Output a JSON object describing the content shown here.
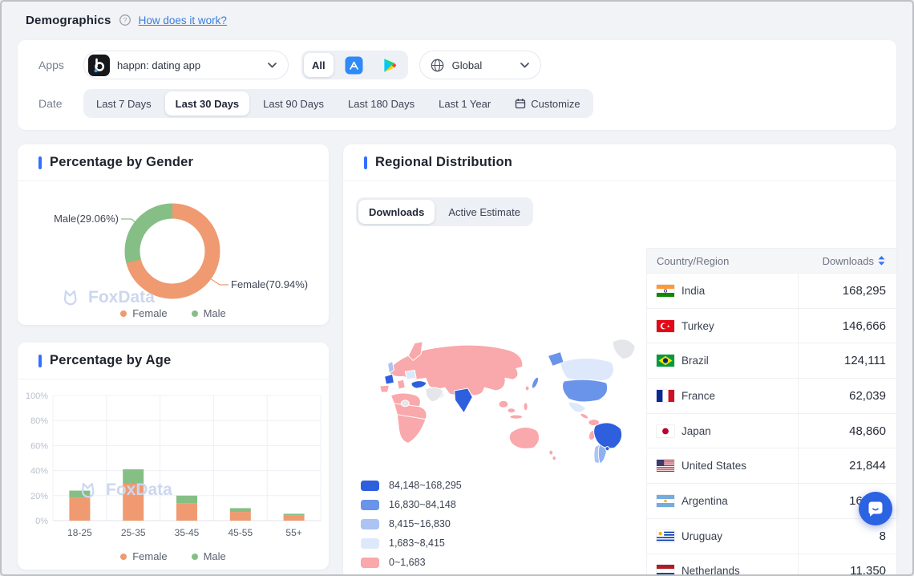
{
  "header": {
    "title": "Demographics",
    "help_link": "How does it work?"
  },
  "filters": {
    "apps_label": "Apps",
    "app_select": {
      "value": "happn: dating app"
    },
    "platforms": {
      "all_label": "All"
    },
    "region_select": {
      "value": "Global"
    },
    "date_label": "Date",
    "date_options": [
      {
        "label": "Last 7 Days",
        "selected": false
      },
      {
        "label": "Last 30 Days",
        "selected": true
      },
      {
        "label": "Last 90 Days",
        "selected": false
      },
      {
        "label": "Last 180 Days",
        "selected": false
      },
      {
        "label": "Last 1 Year",
        "selected": false
      },
      {
        "label": "Customize",
        "selected": false,
        "icon": "calendar-icon"
      }
    ]
  },
  "gender_card": {
    "title": "Percentage by Gender",
    "watermark": "FoxData",
    "chart_data": {
      "type": "pie",
      "slices": [
        {
          "name": "Female",
          "value": 70.94,
          "color": "#ef9a70",
          "label": "Female(70.94%)"
        },
        {
          "name": "Male",
          "value": 29.06,
          "color": "#85bf85",
          "label": "Male(29.06%)"
        }
      ],
      "legend": [
        {
          "name": "Female",
          "color": "#ef9a70"
        },
        {
          "name": "Male",
          "color": "#85bf85"
        }
      ]
    }
  },
  "age_card": {
    "title": "Percentage by Age",
    "watermark": "FoxData",
    "chart_data": {
      "type": "bar",
      "stacked": true,
      "categories": [
        "18-25",
        "25-35",
        "35-45",
        "45-55",
        "55+"
      ],
      "series": [
        {
          "name": "Female",
          "color": "#ef9a70",
          "values": [
            18.5,
            29.5,
            14,
            7,
            4
          ]
        },
        {
          "name": "Male",
          "color": "#85bf85",
          "values": [
            5.5,
            11.5,
            6,
            3,
            1.5
          ]
        }
      ],
      "yticks": [
        "0%",
        "20%",
        "40%",
        "60%",
        "80%",
        "100%"
      ],
      "ylim": [
        0,
        100
      ],
      "grid": true,
      "legend_position": "bottom"
    }
  },
  "regional_card": {
    "title": "Regional Distribution",
    "tabs": [
      {
        "label": "Downloads",
        "selected": true
      },
      {
        "label": "Active Estimate",
        "selected": false
      }
    ],
    "map_legend": [
      {
        "range": "84,148~168,295",
        "color": "#2e5fdd"
      },
      {
        "range": "16,830~84,148",
        "color": "#6a93ea"
      },
      {
        "range": "8,415~16,830",
        "color": "#abc4f4"
      },
      {
        "range": "1,683~8,415",
        "color": "#dde8fb"
      },
      {
        "range": "0~1,683",
        "color": "#f9a8ab"
      }
    ],
    "table": {
      "columns": [
        "Country/Region",
        "Downloads"
      ],
      "rows": [
        {
          "flag": "in",
          "country": "India",
          "value": "168,295"
        },
        {
          "flag": "tr",
          "country": "Turkey",
          "value": "146,666"
        },
        {
          "flag": "br",
          "country": "Brazil",
          "value": "124,111"
        },
        {
          "flag": "fr",
          "country": "France",
          "value": "62,039"
        },
        {
          "flag": "jp",
          "country": "Japan",
          "value": "48,860"
        },
        {
          "flag": "us",
          "country": "United States",
          "value": "21,844"
        },
        {
          "flag": "ar",
          "country": "Argentina",
          "value": "16,308"
        },
        {
          "flag": "uy",
          "country": "Uruguay",
          "value": "8"
        },
        {
          "flag": "nl",
          "country": "Netherlands",
          "value": "11.350"
        }
      ]
    }
  },
  "colors": {
    "accent": "#3370ff",
    "link": "#3b7ddd",
    "female": "#ef9a70",
    "male": "#85bf85",
    "chat_bubble": "#2b63e3",
    "map_nodata": "#e4e6ea"
  }
}
